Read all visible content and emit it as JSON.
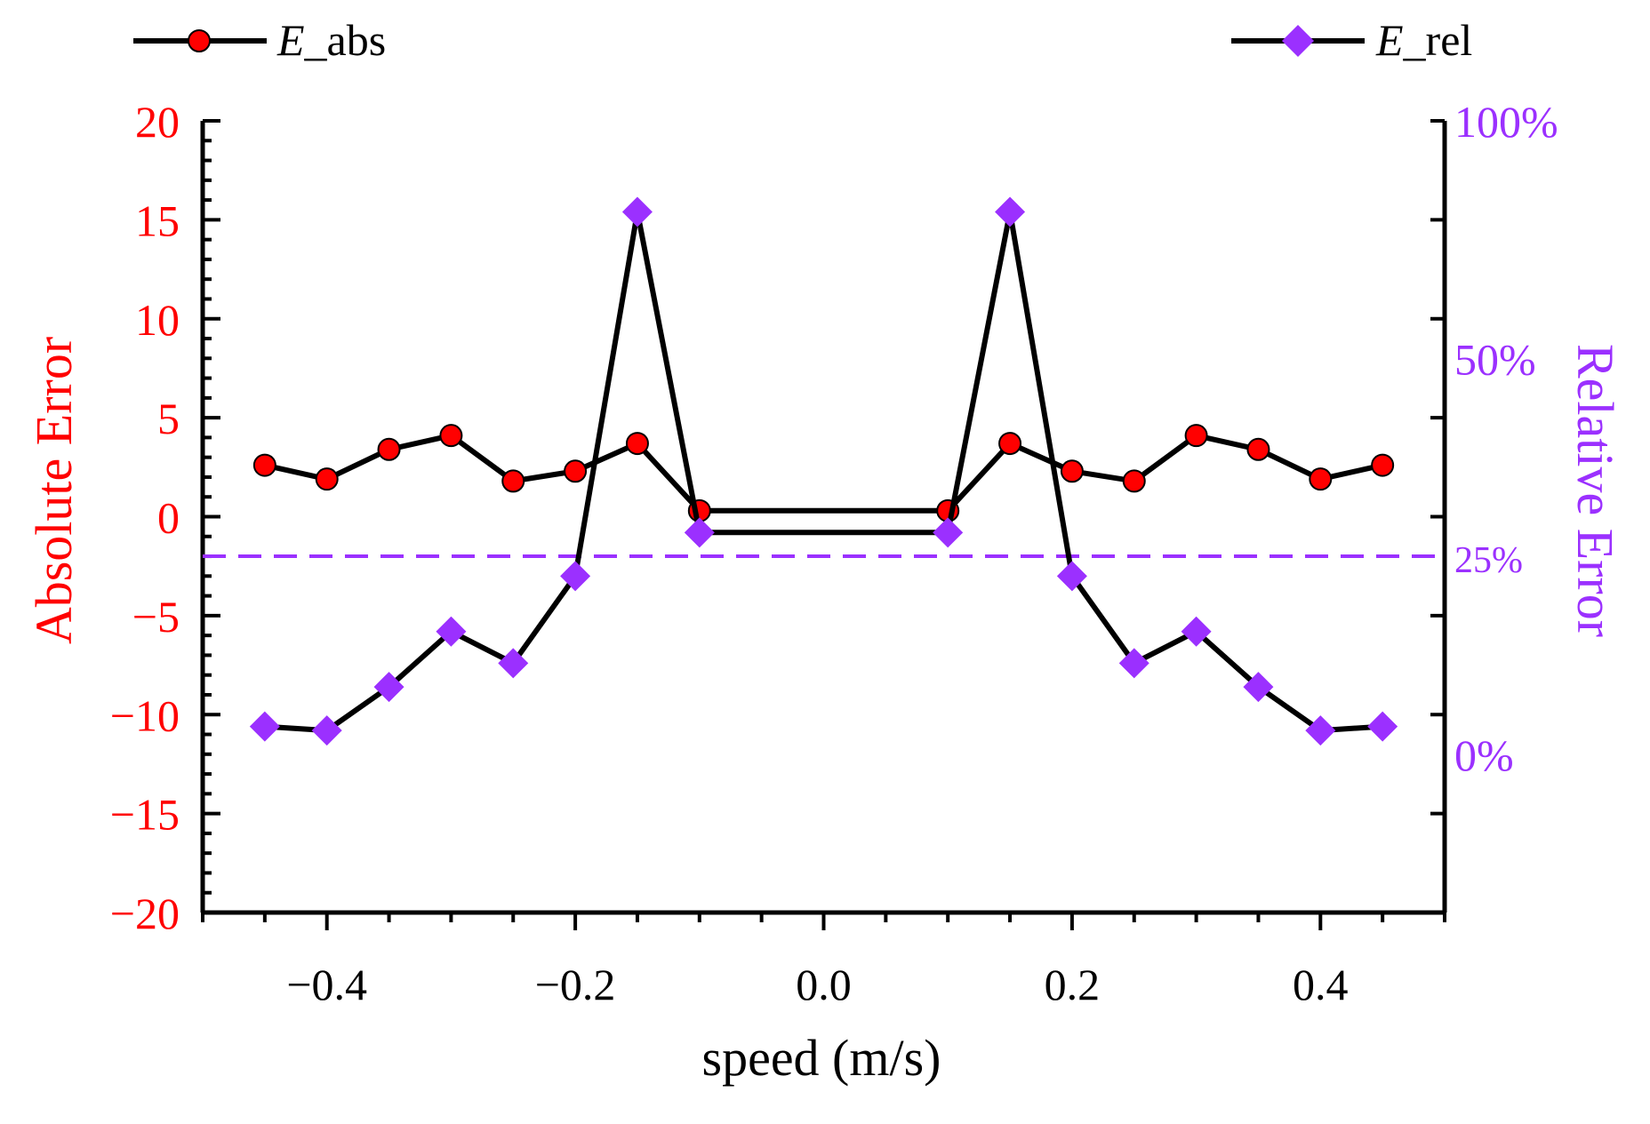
{
  "chart_data": {
    "type": "line",
    "xlabel": "speed (m/s)",
    "ylabel_left": "Absolute Error",
    "ylabel_right": "Relative Error",
    "xlim": [
      -0.5,
      0.5
    ],
    "ylim_left": [
      -20,
      20
    ],
    "ylim_right": [
      -20,
      80
    ],
    "x_ticks": [
      -0.4,
      -0.2,
      0.0,
      0.2,
      0.4
    ],
    "x_tick_labels": [
      "−0.4",
      "−0.2",
      "0.0",
      "0.2",
      "0.4"
    ],
    "y_left_ticks": [
      20,
      15,
      10,
      5,
      0,
      -5,
      -10,
      -15,
      -20
    ],
    "y_left_tick_labels": [
      "20",
      "15",
      "10",
      "5",
      "0",
      "−5",
      "−10",
      "−15",
      "−20"
    ],
    "y_right_ticks": [
      100,
      50,
      25,
      0
    ],
    "y_right_tick_labels": [
      "100%",
      "50%",
      "25%",
      "0%"
    ],
    "reference_line": {
      "axis": "right",
      "value": 25,
      "style": "dashed"
    },
    "series": [
      {
        "name": "E_abs",
        "legend_italic": "E",
        "legend_rest": "_abs",
        "axis": "left",
        "marker": "circle",
        "x": [
          -0.45,
          -0.4,
          -0.35,
          -0.3,
          -0.25,
          -0.2,
          -0.15,
          -0.1,
          0.1,
          0.15,
          0.2,
          0.25,
          0.3,
          0.35,
          0.4,
          0.45
        ],
        "values": [
          2.6,
          1.9,
          3.4,
          4.1,
          1.8,
          2.3,
          3.7,
          0.3,
          0.3,
          3.7,
          2.3,
          1.8,
          4.1,
          3.4,
          1.9,
          2.6
        ]
      },
      {
        "name": "E_rel",
        "legend_italic": "E",
        "legend_rest": "_rel",
        "axis": "right",
        "marker": "diamond",
        "x": [
          -0.45,
          -0.4,
          -0.35,
          -0.3,
          -0.25,
          -0.2,
          -0.15,
          -0.1,
          0.1,
          0.15,
          0.2,
          0.25,
          0.3,
          0.35,
          0.4,
          0.45
        ],
        "values": [
          3.5,
          3,
          8.5,
          15.5,
          11.5,
          22.5,
          68.5,
          28,
          28,
          68.5,
          22.5,
          11.5,
          15.5,
          8.5,
          3,
          3.5
        ]
      }
    ]
  },
  "colors": {
    "axis": "#000000",
    "left_axis_text": "#ff0000",
    "right_axis_text": "#9b30ff",
    "line": "#000000",
    "abs_marker": "#ff0000",
    "rel_marker": "#9b30ff",
    "reference_line": "#9b30ff"
  }
}
